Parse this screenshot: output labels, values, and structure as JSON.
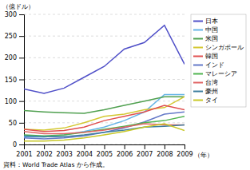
{
  "chart_data": {
    "type": "line",
    "x": [
      2001,
      2002,
      2003,
      2004,
      2005,
      2006,
      2007,
      2008,
      2009
    ],
    "xlim": [
      2001,
      2009
    ],
    "xticks": [
      2001,
      2002,
      2003,
      2004,
      2005,
      2006,
      2007,
      2008,
      2009
    ],
    "ylim": [
      0,
      300
    ],
    "yticks": [
      0,
      50,
      100,
      150,
      200,
      250,
      300
    ],
    "ylabel": "（億ドル）",
    "xlabel": "（年）",
    "source": "資料：World Trade Atlas から作成。",
    "grid": true,
    "legend": "right",
    "series": [
      {
        "name": "日本",
        "color": "#5050c8",
        "values": [
          128,
          118,
          130,
          155,
          180,
          220,
          235,
          275,
          185
        ]
      },
      {
        "name": "中国",
        "color": "#64b4e6",
        "values": [
          18,
          17,
          22,
          30,
          40,
          55,
          75,
          115,
          115
        ]
      },
      {
        "name": "米国",
        "color": "#50a050",
        "values": [
          78,
          75,
          73,
          72,
          80,
          90,
          100,
          110,
          110
        ]
      },
      {
        "name": "シンガポール",
        "color": "#d4c832",
        "values": [
          35,
          33,
          38,
          50,
          65,
          70,
          80,
          85,
          110
        ]
      },
      {
        "name": "韓国",
        "color": "#e05050",
        "values": [
          35,
          30,
          32,
          40,
          55,
          65,
          75,
          90,
          80
        ]
      },
      {
        "name": "インド",
        "color": "#6478c8",
        "values": [
          15,
          13,
          15,
          20,
          28,
          38,
          52,
          70,
          75
        ]
      },
      {
        "name": "マレーシア",
        "color": "#50b450",
        "values": [
          22,
          20,
          22,
          28,
          35,
          42,
          50,
          55,
          65
        ]
      },
      {
        "name": "台湾",
        "color": "#e06464",
        "values": [
          30,
          25,
          25,
          28,
          33,
          40,
          48,
          45,
          45
        ]
      },
      {
        "name": "豪州",
        "color": "#4080a0",
        "values": [
          20,
          18,
          18,
          22,
          28,
          33,
          40,
          42,
          45
        ]
      },
      {
        "name": "タイ",
        "color": "#c8c828",
        "values": [
          8,
          8,
          10,
          15,
          22,
          30,
          40,
          48,
          32
        ]
      }
    ]
  }
}
